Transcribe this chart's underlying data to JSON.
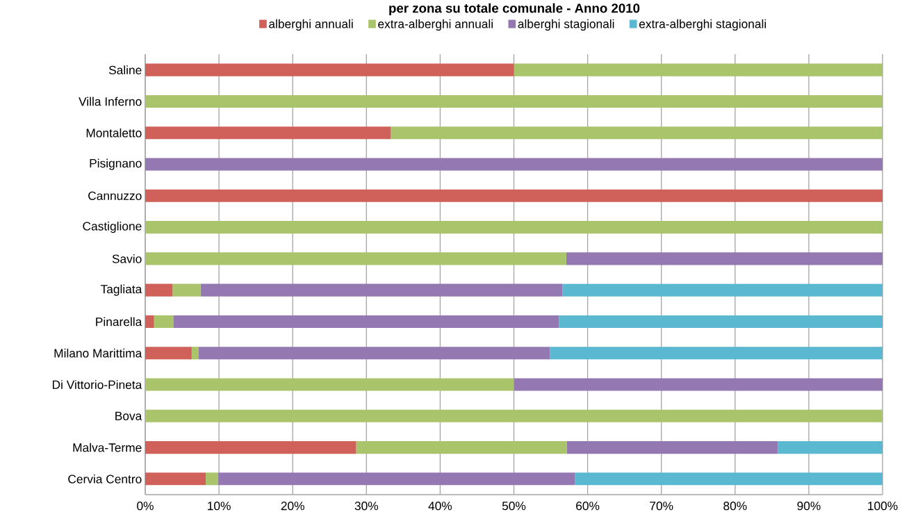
{
  "chart_data": {
    "type": "bar",
    "orientation": "horizontal",
    "stacked": true,
    "title": "per zona su totale comunale - Anno 2010",
    "categories": [
      "Saline",
      "Villa Inferno",
      "Montaletto",
      "Pisignano",
      "Cannuzzo",
      "Castiglione",
      "Savio",
      "Tagliata",
      "Pinarella",
      "Milano Marittima",
      "Di Vittorio-Pineta",
      "Bova",
      "Malva-Terme",
      "Cervia Centro"
    ],
    "series": [
      {
        "name": "alberghi annuali",
        "color": "#d0605a",
        "values": [
          50,
          0,
          33.3,
          0,
          100,
          0,
          0,
          3.7,
          1.2,
          6.3,
          0,
          0,
          28.6,
          8.2
        ]
      },
      {
        "name": "extra-alberghi annuali",
        "color": "#a9c46b",
        "values": [
          50,
          100,
          66.7,
          0,
          0,
          100,
          57.1,
          3.8,
          2.6,
          0.9,
          50,
          100,
          28.6,
          1.7
        ]
      },
      {
        "name": "alberghi stagionali",
        "color": "#9378b1",
        "values": [
          0,
          0,
          0,
          100,
          0,
          0,
          42.9,
          49.1,
          52.3,
          47.7,
          50,
          0,
          28.6,
          48.4
        ]
      },
      {
        "name": "extra-alberghi stagionali",
        "color": "#5ab8d0",
        "values": [
          0,
          0,
          0,
          0,
          0,
          0,
          0,
          43.4,
          43.9,
          45.1,
          0,
          0,
          14.2,
          41.7
        ]
      }
    ],
    "xlim": [
      0,
      100
    ],
    "xticks": [
      {
        "value": 0,
        "label": "0%"
      },
      {
        "value": 10,
        "label": "10%"
      },
      {
        "value": 20,
        "label": "20%"
      },
      {
        "value": 30,
        "label": "30%"
      },
      {
        "value": 40,
        "label": "40%"
      },
      {
        "value": 50,
        "label": "50%"
      },
      {
        "value": 60,
        "label": "60%"
      },
      {
        "value": 70,
        "label": "70%"
      },
      {
        "value": 80,
        "label": "80%"
      },
      {
        "value": 90,
        "label": "90%"
      },
      {
        "value": 100,
        "label": "100%"
      }
    ],
    "grid": "x",
    "legend": "top"
  }
}
